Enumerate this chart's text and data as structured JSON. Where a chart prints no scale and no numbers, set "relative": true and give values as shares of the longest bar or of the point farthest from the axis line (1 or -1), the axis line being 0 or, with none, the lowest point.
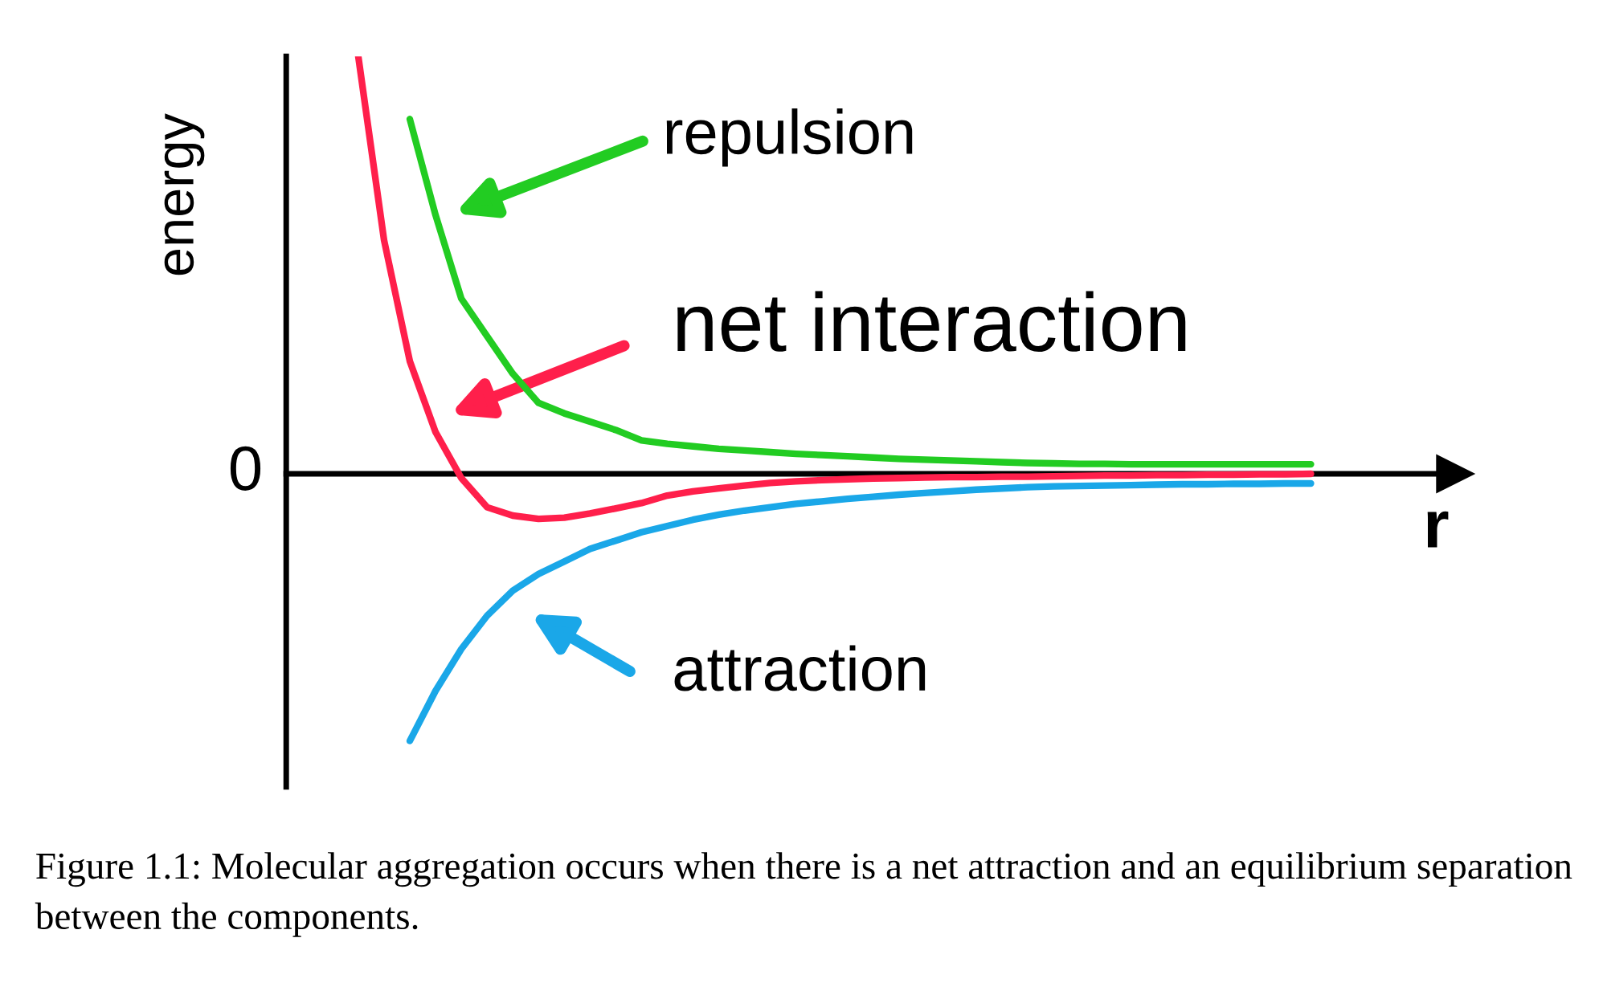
{
  "chart_data": {
    "type": "line",
    "relative": true,
    "ylabel": "energy",
    "xlabel": "r",
    "legend": "center",
    "categories": [
      null,
      null,
      null,
      null,
      null,
      null,
      null,
      null,
      null,
      null,
      null,
      null,
      null,
      null,
      null,
      null,
      null,
      null,
      null,
      null,
      null,
      null,
      null,
      null,
      null,
      null,
      null,
      null,
      null,
      null,
      null,
      null,
      null,
      null,
      null,
      null,
      null,
      null
    ],
    "series": [
      {
        "name": "repulsion",
        "color": "#22cc22",
        "values": [
          null,
          null,
          0.85,
          0.62,
          0.42,
          0.33,
          0.24,
          0.17,
          0.145,
          0.125,
          0.105,
          0.08,
          0.072,
          0.066,
          0.06,
          0.056,
          0.052,
          0.048,
          0.045,
          0.042,
          0.039,
          0.036,
          0.034,
          0.032,
          0.03,
          0.028,
          0.026,
          0.025,
          0.024,
          0.024,
          0.023,
          0.023,
          0.023,
          0.023,
          0.023,
          0.023,
          0.023,
          0.023
        ]
      },
      {
        "name": "net interaction",
        "color": "#ff1f4b",
        "values": [
          1.0,
          0.56,
          0.27,
          0.1,
          -0.01,
          -0.08,
          -0.1,
          -0.108,
          -0.105,
          -0.095,
          -0.083,
          -0.07,
          -0.052,
          -0.042,
          -0.035,
          -0.028,
          -0.022,
          -0.018,
          -0.015,
          -0.013,
          -0.011,
          -0.01,
          -0.009,
          -0.008,
          -0.008,
          -0.007,
          -0.007,
          -0.006,
          -0.005,
          -0.004,
          -0.004,
          -0.003,
          -0.003,
          -0.002,
          -0.002,
          -0.001,
          -0.001,
          0
        ]
      },
      {
        "name": "attraction",
        "color": "#1aa7e8",
        "values": [
          null,
          null,
          -0.64,
          -0.52,
          -0.42,
          -0.34,
          -0.28,
          -0.24,
          -0.21,
          -0.18,
          -0.16,
          -0.14,
          -0.125,
          -0.11,
          -0.098,
          -0.088,
          -0.08,
          -0.072,
          -0.066,
          -0.06,
          -0.055,
          -0.05,
          -0.046,
          -0.042,
          -0.038,
          -0.035,
          -0.032,
          -0.03,
          -0.029,
          -0.028,
          -0.027,
          -0.026,
          -0.025,
          -0.025,
          -0.024,
          -0.024,
          -0.023,
          -0.023
        ]
      }
    ],
    "annotations": [
      "0",
      "Figure 1.1: Molecular aggregation occurs when there is a net attraction and an equilibrium separation between the components."
    ]
  }
}
